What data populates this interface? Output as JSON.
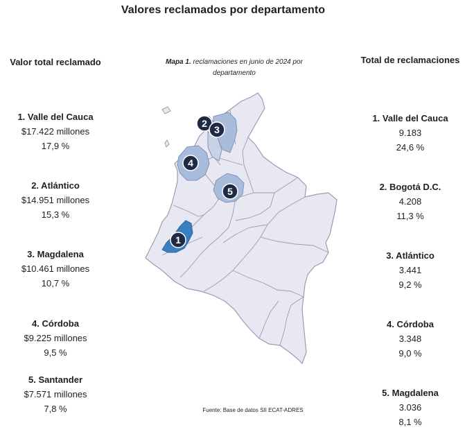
{
  "title": "Valores reclamados por departamento",
  "left": {
    "heading": "Valor total reclamado",
    "items": [
      {
        "name": "1. Valle del Cauca",
        "value": "$17.422 millones",
        "pct": "17,9 %"
      },
      {
        "name": "2. Atlántico",
        "value": "$14.951 millones",
        "pct": "15,3 %"
      },
      {
        "name": "3. Magdalena",
        "value": "$10.461 millones",
        "pct": "10,7 %"
      },
      {
        "name": "4. Córdoba",
        "value": "$9.225 millones",
        "pct": "9,5 %"
      },
      {
        "name": "5. Santander",
        "value": "$7.571 millones",
        "pct": "7,8 %"
      }
    ]
  },
  "right": {
    "heading": "Total de reclamaciones",
    "items": [
      {
        "name": "1. Valle del Cauca",
        "value": "9.183",
        "pct": "24,6 %"
      },
      {
        "name": "2. Bogotá D.C.",
        "value": "4.208",
        "pct": "11,3 %"
      },
      {
        "name": "3. Atlántico",
        "value": "3.441",
        "pct": "9,2 %"
      },
      {
        "name": "4. Córdoba",
        "value": "3.348",
        "pct": "9,0 %"
      },
      {
        "name": "5. Magdalena",
        "value": "3.036",
        "pct": "8,1 %"
      }
    ]
  },
  "map": {
    "caption_label": "Mapa 1.",
    "caption_text": " reclamaciones en junio de 2024 por departamento",
    "source": "Fuente: Base de datos SII  ECAT-ADRES",
    "badges": [
      "1",
      "2",
      "3",
      "4",
      "5"
    ],
    "colors": {
      "base": "#e8e8f2",
      "border": "#9a9ab4",
      "rank1": "#3a7fbf",
      "rank_mid": "#a9bcdc",
      "rank_light": "#c7d2e8",
      "badge": "#1f2a44"
    }
  }
}
